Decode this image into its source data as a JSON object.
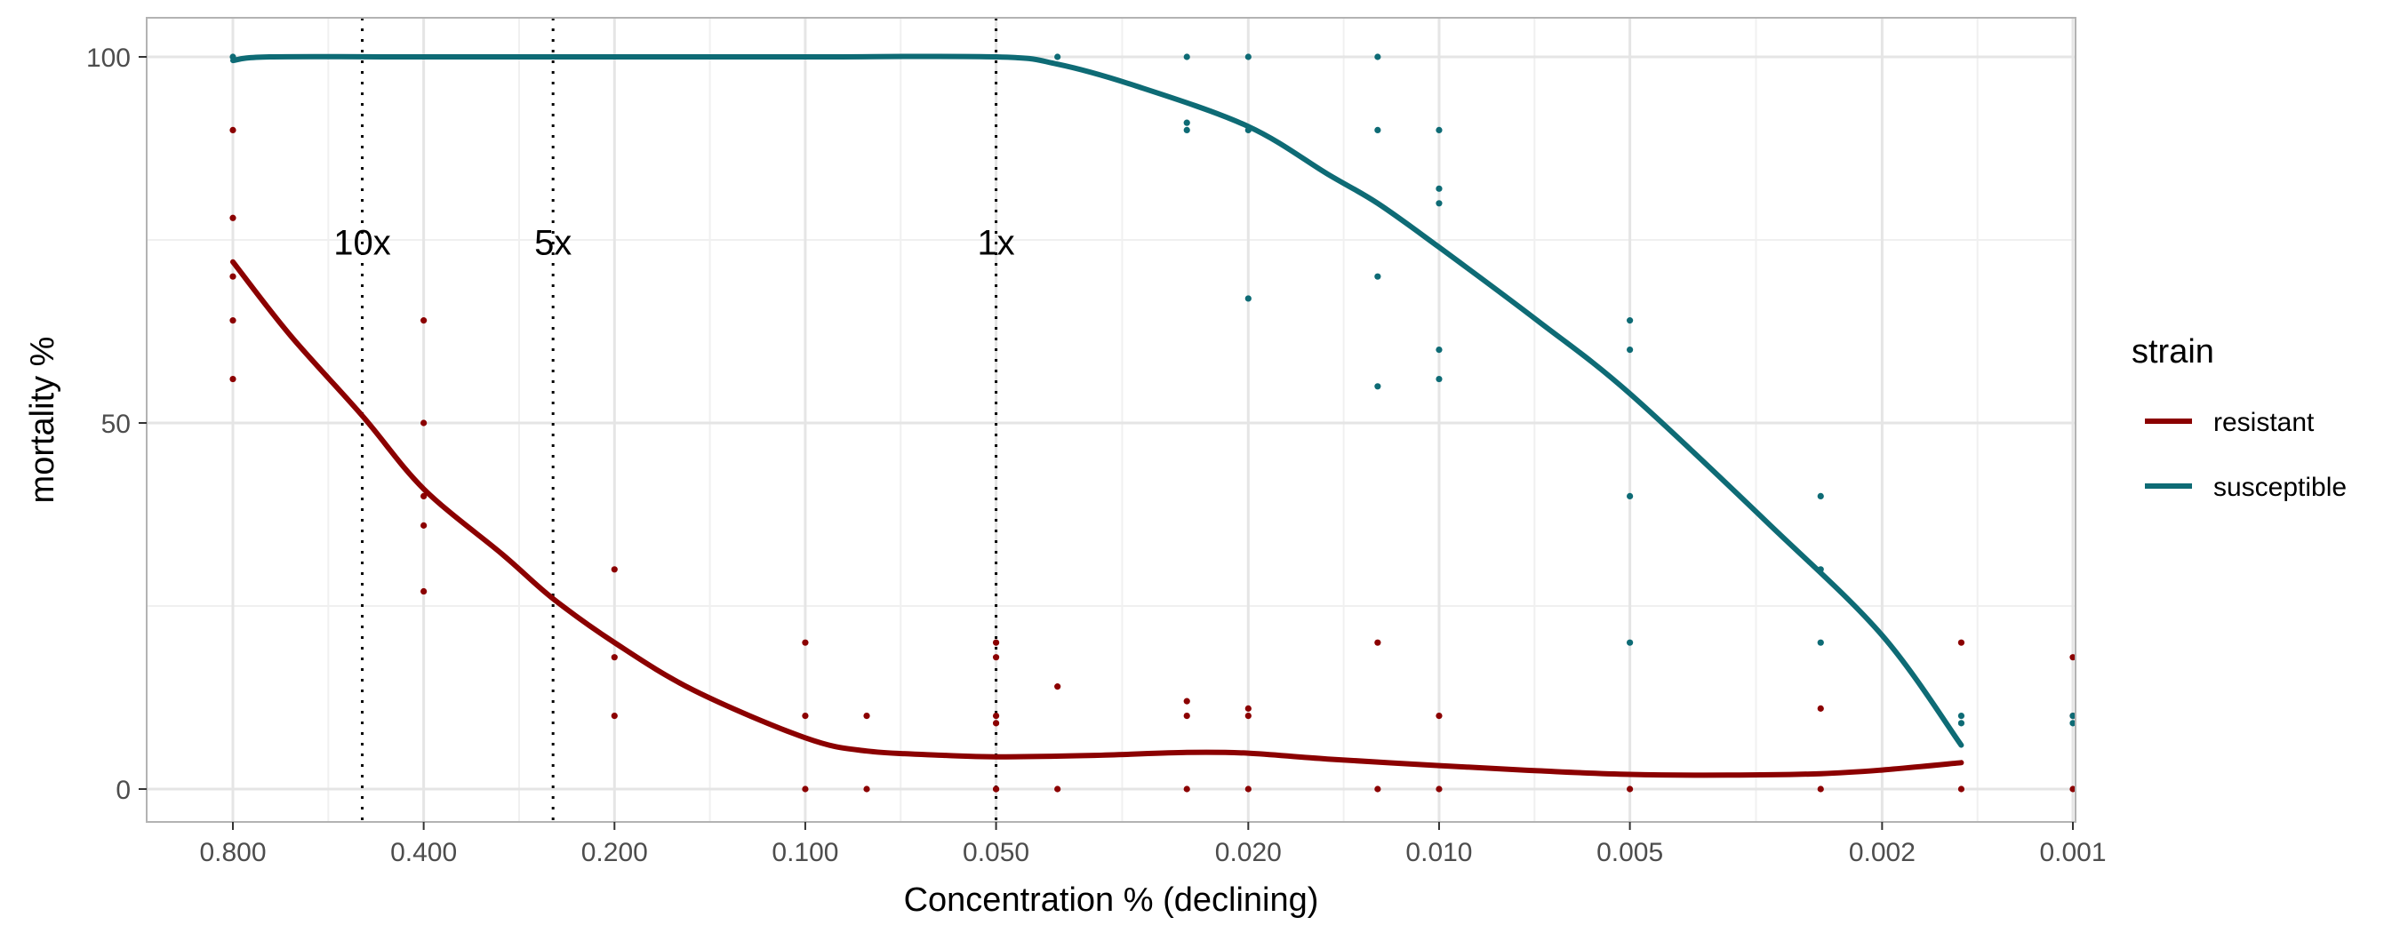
{
  "chart_data": {
    "type": "scatter",
    "xlabel": "Concentration % (declining)",
    "ylabel": "mortality %",
    "x_scale": "log",
    "x_reversed": true,
    "xlim": [
      0.8,
      0.001
    ],
    "ylim": [
      0,
      100
    ],
    "x_ticks": [
      0.8,
      0.4,
      0.2,
      0.1,
      0.05,
      0.02,
      0.01,
      0.005,
      0.002,
      0.001
    ],
    "x_tick_labels": [
      "0.800",
      "0.400",
      "0.200",
      "0.100",
      "0.050",
      "0.020",
      "0.010",
      "0.005",
      "0.002",
      "0.001"
    ],
    "y_ticks": [
      0,
      50,
      100
    ],
    "y_tick_labels": [
      "0",
      "50",
      "100"
    ],
    "grid": true,
    "legend": {
      "title": "strain",
      "position": "right"
    },
    "reference_lines": [
      {
        "x": 0.5,
        "label": "10x"
      },
      {
        "x": 0.25,
        "label": "5x"
      },
      {
        "x": 0.05,
        "label": "1x"
      }
    ],
    "series": [
      {
        "name": "resistant",
        "color": "#8B0000",
        "points": [
          {
            "x": 0.8,
            "y": 90
          },
          {
            "x": 0.8,
            "y": 78
          },
          {
            "x": 0.8,
            "y": 70
          },
          {
            "x": 0.8,
            "y": 64
          },
          {
            "x": 0.8,
            "y": 56
          },
          {
            "x": 0.4,
            "y": 64
          },
          {
            "x": 0.4,
            "y": 50
          },
          {
            "x": 0.4,
            "y": 40
          },
          {
            "x": 0.4,
            "y": 36
          },
          {
            "x": 0.4,
            "y": 27
          },
          {
            "x": 0.2,
            "y": 30
          },
          {
            "x": 0.2,
            "y": 18
          },
          {
            "x": 0.2,
            "y": 10
          },
          {
            "x": 0.1,
            "y": 20
          },
          {
            "x": 0.1,
            "y": 10
          },
          {
            "x": 0.1,
            "y": 0
          },
          {
            "x": 0.08,
            "y": 10
          },
          {
            "x": 0.08,
            "y": 0
          },
          {
            "x": 0.05,
            "y": 20
          },
          {
            "x": 0.05,
            "y": 18
          },
          {
            "x": 0.05,
            "y": 10
          },
          {
            "x": 0.05,
            "y": 9
          },
          {
            "x": 0.05,
            "y": 0
          },
          {
            "x": 0.05,
            "y": 0
          },
          {
            "x": 0.04,
            "y": 14
          },
          {
            "x": 0.04,
            "y": 0
          },
          {
            "x": 0.025,
            "y": 12
          },
          {
            "x": 0.025,
            "y": 10
          },
          {
            "x": 0.025,
            "y": 0
          },
          {
            "x": 0.02,
            "y": 11
          },
          {
            "x": 0.02,
            "y": 10
          },
          {
            "x": 0.02,
            "y": 0
          },
          {
            "x": 0.0125,
            "y": 20
          },
          {
            "x": 0.0125,
            "y": 0
          },
          {
            "x": 0.01,
            "y": 10
          },
          {
            "x": 0.01,
            "y": 0
          },
          {
            "x": 0.005,
            "y": 0
          },
          {
            "x": 0.0025,
            "y": 11
          },
          {
            "x": 0.0025,
            "y": 0
          },
          {
            "x": 0.0015,
            "y": 20
          },
          {
            "x": 0.0015,
            "y": 0
          },
          {
            "x": 0.001,
            "y": 18
          },
          {
            "x": 0.001,
            "y": 10
          },
          {
            "x": 0.001,
            "y": 0
          }
        ],
        "smooth": [
          {
            "x": 0.8,
            "y": 72
          },
          {
            "x": 0.65,
            "y": 62
          },
          {
            "x": 0.5,
            "y": 51
          },
          {
            "x": 0.4,
            "y": 41
          },
          {
            "x": 0.3,
            "y": 32
          },
          {
            "x": 0.25,
            "y": 26
          },
          {
            "x": 0.2,
            "y": 20
          },
          {
            "x": 0.15,
            "y": 13.5
          },
          {
            "x": 0.1,
            "y": 7
          },
          {
            "x": 0.08,
            "y": 5.2
          },
          {
            "x": 0.06,
            "y": 4.6
          },
          {
            "x": 0.05,
            "y": 4.4
          },
          {
            "x": 0.035,
            "y": 4.6
          },
          {
            "x": 0.025,
            "y": 5
          },
          {
            "x": 0.02,
            "y": 4.9
          },
          {
            "x": 0.015,
            "y": 4.1
          },
          {
            "x": 0.01,
            "y": 3.2
          },
          {
            "x": 0.007,
            "y": 2.5
          },
          {
            "x": 0.005,
            "y": 2
          },
          {
            "x": 0.0035,
            "y": 1.9
          },
          {
            "x": 0.0025,
            "y": 2.1
          },
          {
            "x": 0.002,
            "y": 2.6
          },
          {
            "x": 0.0015,
            "y": 3.6
          }
        ]
      },
      {
        "name": "susceptible",
        "color": "#0E6B75",
        "points": [
          {
            "x": 0.8,
            "y": 100
          },
          {
            "x": 0.04,
            "y": 100
          },
          {
            "x": 0.025,
            "y": 100
          },
          {
            "x": 0.025,
            "y": 91
          },
          {
            "x": 0.025,
            "y": 90
          },
          {
            "x": 0.02,
            "y": 100
          },
          {
            "x": 0.02,
            "y": 90
          },
          {
            "x": 0.02,
            "y": 67
          },
          {
            "x": 0.0125,
            "y": 100
          },
          {
            "x": 0.0125,
            "y": 90
          },
          {
            "x": 0.0125,
            "y": 70
          },
          {
            "x": 0.0125,
            "y": 55
          },
          {
            "x": 0.01,
            "y": 90
          },
          {
            "x": 0.01,
            "y": 82
          },
          {
            "x": 0.01,
            "y": 80
          },
          {
            "x": 0.01,
            "y": 60
          },
          {
            "x": 0.01,
            "y": 56
          },
          {
            "x": 0.005,
            "y": 64
          },
          {
            "x": 0.005,
            "y": 60
          },
          {
            "x": 0.005,
            "y": 40
          },
          {
            "x": 0.005,
            "y": 20
          },
          {
            "x": 0.0025,
            "y": 40
          },
          {
            "x": 0.0025,
            "y": 30
          },
          {
            "x": 0.0025,
            "y": 20
          },
          {
            "x": 0.0015,
            "y": 10
          },
          {
            "x": 0.0015,
            "y": 9
          },
          {
            "x": 0.001,
            "y": 10
          },
          {
            "x": 0.001,
            "y": 9
          }
        ],
        "smooth": [
          {
            "x": 0.8,
            "y": 99.5
          },
          {
            "x": 0.7,
            "y": 100
          },
          {
            "x": 0.4,
            "y": 100
          },
          {
            "x": 0.2,
            "y": 100
          },
          {
            "x": 0.1,
            "y": 100
          },
          {
            "x": 0.05,
            "y": 100
          },
          {
            "x": 0.04,
            "y": 99
          },
          {
            "x": 0.03,
            "y": 96
          },
          {
            "x": 0.02,
            "y": 90.5
          },
          {
            "x": 0.015,
            "y": 84
          },
          {
            "x": 0.0125,
            "y": 80
          },
          {
            "x": 0.01,
            "y": 74
          },
          {
            "x": 0.007,
            "y": 64
          },
          {
            "x": 0.005,
            "y": 54
          },
          {
            "x": 0.003,
            "y": 36
          },
          {
            "x": 0.002,
            "y": 21
          },
          {
            "x": 0.0015,
            "y": 6
          }
        ]
      }
    ]
  }
}
